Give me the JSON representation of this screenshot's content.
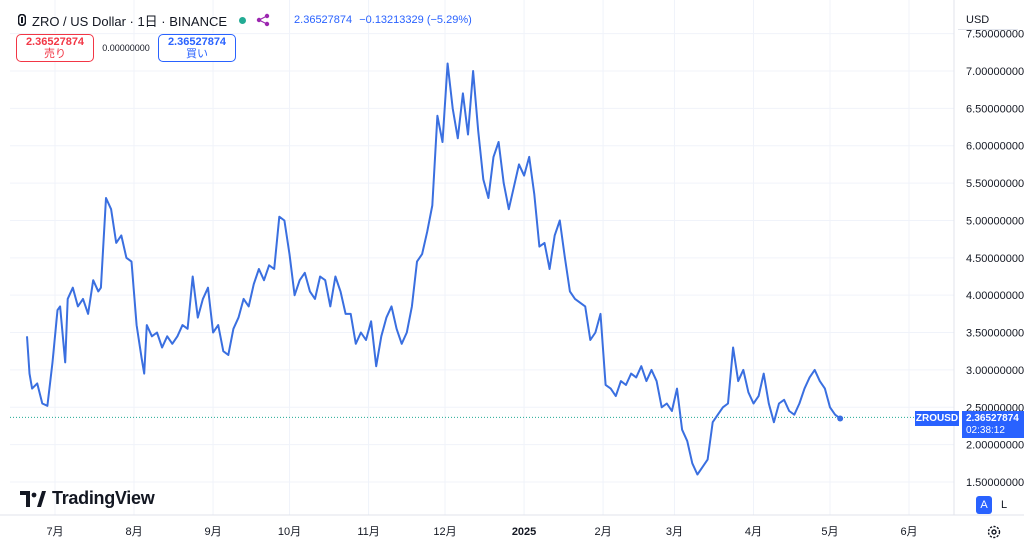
{
  "header": {
    "symbol_title": "ZRO / US Dollar · 1日 · BINANCE",
    "last_price": "2.36527874",
    "change": "−0.13213329",
    "change_pct": "(−5.29%)"
  },
  "trade": {
    "sell_price": "2.36527874",
    "sell_label": "売り",
    "spread": "0.00000000",
    "buy_price": "2.36527874",
    "buy_label": "買い"
  },
  "currency": "USD",
  "logo_text": "TradingView",
  "price_tag": {
    "symbol": "ZROUSD",
    "price": "2.36527874",
    "countdown": "02:38:12"
  },
  "scale_buttons": {
    "auto": "A",
    "log": "L"
  },
  "icons": [
    "logo-icon",
    "share-icon",
    "settings-gear-icon"
  ],
  "colors": {
    "line": "#3a6fe0",
    "accent": "#2962ff",
    "sell": "#f23645",
    "live": "#22ab94"
  },
  "chart_data": {
    "type": "line",
    "ylim": [
      1.5,
      7.5
    ],
    "y_ticks": [
      "1.50000000",
      "2.00000000",
      "2.50000000",
      "3.00000000",
      "3.50000000",
      "4.00000000",
      "4.50000000",
      "5.00000000",
      "5.50000000",
      "6.00000000",
      "6.50000000",
      "7.00000000",
      "7.50000000"
    ],
    "x_ticks": [
      {
        "label": "7月",
        "date": "2024-07-01"
      },
      {
        "label": "8月",
        "date": "2024-08-01"
      },
      {
        "label": "9月",
        "date": "2024-09-01"
      },
      {
        "label": "10月",
        "date": "2024-10-01"
      },
      {
        "label": "11月",
        "date": "2024-11-01"
      },
      {
        "label": "12月",
        "date": "2024-12-01"
      },
      {
        "label": "2025",
        "date": "2025-01-01"
      },
      {
        "label": "2月",
        "date": "2025-02-01"
      },
      {
        "label": "3月",
        "date": "2025-03-01"
      },
      {
        "label": "4月",
        "date": "2025-04-01"
      },
      {
        "label": "5月",
        "date": "2025-05-01"
      },
      {
        "label": "6月",
        "date": "2025-06-01"
      }
    ],
    "last_value": 2.365,
    "series": [
      {
        "points": [
          [
            "2024-06-20",
            3.45
          ],
          [
            "2024-06-21",
            2.95
          ],
          [
            "2024-06-22",
            2.75
          ],
          [
            "2024-06-24",
            2.82
          ],
          [
            "2024-06-26",
            2.55
          ],
          [
            "2024-06-28",
            2.52
          ],
          [
            "2024-06-30",
            3.1
          ],
          [
            "2024-07-02",
            3.8
          ],
          [
            "2024-07-03",
            3.85
          ],
          [
            "2024-07-05",
            3.1
          ],
          [
            "2024-07-06",
            3.95
          ],
          [
            "2024-07-08",
            4.1
          ],
          [
            "2024-07-10",
            3.85
          ],
          [
            "2024-07-12",
            3.95
          ],
          [
            "2024-07-14",
            3.75
          ],
          [
            "2024-07-16",
            4.2
          ],
          [
            "2024-07-18",
            4.05
          ],
          [
            "2024-07-19",
            4.1
          ],
          [
            "2024-07-21",
            5.3
          ],
          [
            "2024-07-23",
            5.15
          ],
          [
            "2024-07-25",
            4.7
          ],
          [
            "2024-07-27",
            4.8
          ],
          [
            "2024-07-29",
            4.5
          ],
          [
            "2024-07-31",
            4.45
          ],
          [
            "2024-08-02",
            3.6
          ],
          [
            "2024-08-04",
            3.15
          ],
          [
            "2024-08-05",
            2.95
          ],
          [
            "2024-08-06",
            3.6
          ],
          [
            "2024-08-08",
            3.45
          ],
          [
            "2024-08-10",
            3.5
          ],
          [
            "2024-08-12",
            3.3
          ],
          [
            "2024-08-14",
            3.45
          ],
          [
            "2024-08-16",
            3.35
          ],
          [
            "2024-08-18",
            3.45
          ],
          [
            "2024-08-20",
            3.6
          ],
          [
            "2024-08-22",
            3.55
          ],
          [
            "2024-08-24",
            4.25
          ],
          [
            "2024-08-26",
            3.7
          ],
          [
            "2024-08-28",
            3.95
          ],
          [
            "2024-08-30",
            4.1
          ],
          [
            "2024-09-01",
            3.5
          ],
          [
            "2024-09-03",
            3.6
          ],
          [
            "2024-09-05",
            3.25
          ],
          [
            "2024-09-07",
            3.2
          ],
          [
            "2024-09-09",
            3.55
          ],
          [
            "2024-09-11",
            3.7
          ],
          [
            "2024-09-13",
            3.95
          ],
          [
            "2024-09-15",
            3.85
          ],
          [
            "2024-09-17",
            4.15
          ],
          [
            "2024-09-19",
            4.35
          ],
          [
            "2024-09-21",
            4.2
          ],
          [
            "2024-09-23",
            4.4
          ],
          [
            "2024-09-25",
            4.35
          ],
          [
            "2024-09-27",
            5.05
          ],
          [
            "2024-09-29",
            5.0
          ],
          [
            "2024-10-01",
            4.55
          ],
          [
            "2024-10-03",
            4.0
          ],
          [
            "2024-10-05",
            4.2
          ],
          [
            "2024-10-07",
            4.3
          ],
          [
            "2024-10-09",
            4.05
          ],
          [
            "2024-10-11",
            3.95
          ],
          [
            "2024-10-13",
            4.25
          ],
          [
            "2024-10-15",
            4.2
          ],
          [
            "2024-10-17",
            3.85
          ],
          [
            "2024-10-19",
            4.25
          ],
          [
            "2024-10-21",
            4.05
          ],
          [
            "2024-10-23",
            3.75
          ],
          [
            "2024-10-25",
            3.75
          ],
          [
            "2024-10-27",
            3.35
          ],
          [
            "2024-10-29",
            3.5
          ],
          [
            "2024-10-31",
            3.4
          ],
          [
            "2024-11-02",
            3.65
          ],
          [
            "2024-11-04",
            3.05
          ],
          [
            "2024-11-06",
            3.45
          ],
          [
            "2024-11-08",
            3.7
          ],
          [
            "2024-11-10",
            3.85
          ],
          [
            "2024-11-12",
            3.55
          ],
          [
            "2024-11-14",
            3.35
          ],
          [
            "2024-11-16",
            3.5
          ],
          [
            "2024-11-18",
            3.85
          ],
          [
            "2024-11-20",
            4.45
          ],
          [
            "2024-11-22",
            4.55
          ],
          [
            "2024-11-24",
            4.85
          ],
          [
            "2024-11-26",
            5.2
          ],
          [
            "2024-11-28",
            6.4
          ],
          [
            "2024-11-30",
            6.05
          ],
          [
            "2024-12-02",
            7.1
          ],
          [
            "2024-12-04",
            6.5
          ],
          [
            "2024-12-06",
            6.1
          ],
          [
            "2024-12-08",
            6.7
          ],
          [
            "2024-12-10",
            6.15
          ],
          [
            "2024-12-12",
            7.0
          ],
          [
            "2024-12-14",
            6.2
          ],
          [
            "2024-12-16",
            5.55
          ],
          [
            "2024-12-18",
            5.3
          ],
          [
            "2024-12-20",
            5.85
          ],
          [
            "2024-12-22",
            6.05
          ],
          [
            "2024-12-24",
            5.5
          ],
          [
            "2024-12-26",
            5.15
          ],
          [
            "2024-12-28",
            5.45
          ],
          [
            "2024-12-30",
            5.75
          ],
          [
            "2025-01-01",
            5.6
          ],
          [
            "2025-01-03",
            5.85
          ],
          [
            "2025-01-05",
            5.35
          ],
          [
            "2025-01-07",
            4.65
          ],
          [
            "2025-01-09",
            4.7
          ],
          [
            "2025-01-11",
            4.35
          ],
          [
            "2025-01-13",
            4.8
          ],
          [
            "2025-01-15",
            5.0
          ],
          [
            "2025-01-17",
            4.5
          ],
          [
            "2025-01-19",
            4.05
          ],
          [
            "2025-01-21",
            3.95
          ],
          [
            "2025-01-23",
            3.9
          ],
          [
            "2025-01-25",
            3.85
          ],
          [
            "2025-01-27",
            3.4
          ],
          [
            "2025-01-29",
            3.5
          ],
          [
            "2025-01-31",
            3.75
          ],
          [
            "2025-02-02",
            2.8
          ],
          [
            "2025-02-04",
            2.75
          ],
          [
            "2025-02-06",
            2.65
          ],
          [
            "2025-02-08",
            2.85
          ],
          [
            "2025-02-10",
            2.8
          ],
          [
            "2025-02-12",
            2.95
          ],
          [
            "2025-02-14",
            2.9
          ],
          [
            "2025-02-16",
            3.05
          ],
          [
            "2025-02-18",
            2.85
          ],
          [
            "2025-02-20",
            3.0
          ],
          [
            "2025-02-22",
            2.85
          ],
          [
            "2025-02-24",
            2.5
          ],
          [
            "2025-02-26",
            2.55
          ],
          [
            "2025-02-28",
            2.45
          ],
          [
            "2025-03-02",
            2.75
          ],
          [
            "2025-03-04",
            2.2
          ],
          [
            "2025-03-06",
            2.05
          ],
          [
            "2025-03-08",
            1.75
          ],
          [
            "2025-03-10",
            1.6
          ],
          [
            "2025-03-12",
            1.7
          ],
          [
            "2025-03-14",
            1.8
          ],
          [
            "2025-03-16",
            2.3
          ],
          [
            "2025-03-18",
            2.4
          ],
          [
            "2025-03-20",
            2.5
          ],
          [
            "2025-03-22",
            2.55
          ],
          [
            "2025-03-24",
            3.3
          ],
          [
            "2025-03-26",
            2.85
          ],
          [
            "2025-03-28",
            3.0
          ],
          [
            "2025-03-30",
            2.7
          ],
          [
            "2025-04-01",
            2.55
          ],
          [
            "2025-04-03",
            2.65
          ],
          [
            "2025-04-05",
            2.95
          ],
          [
            "2025-04-07",
            2.55
          ],
          [
            "2025-04-09",
            2.3
          ],
          [
            "2025-04-11",
            2.55
          ],
          [
            "2025-04-13",
            2.6
          ],
          [
            "2025-04-15",
            2.45
          ],
          [
            "2025-04-17",
            2.4
          ],
          [
            "2025-04-19",
            2.55
          ],
          [
            "2025-04-21",
            2.75
          ],
          [
            "2025-04-23",
            2.9
          ],
          [
            "2025-04-25",
            3.0
          ],
          [
            "2025-04-27",
            2.85
          ],
          [
            "2025-04-29",
            2.75
          ],
          [
            "2025-05-01",
            2.5
          ],
          [
            "2025-05-03",
            2.4
          ],
          [
            "2025-05-05",
            2.35
          ]
        ]
      }
    ]
  }
}
